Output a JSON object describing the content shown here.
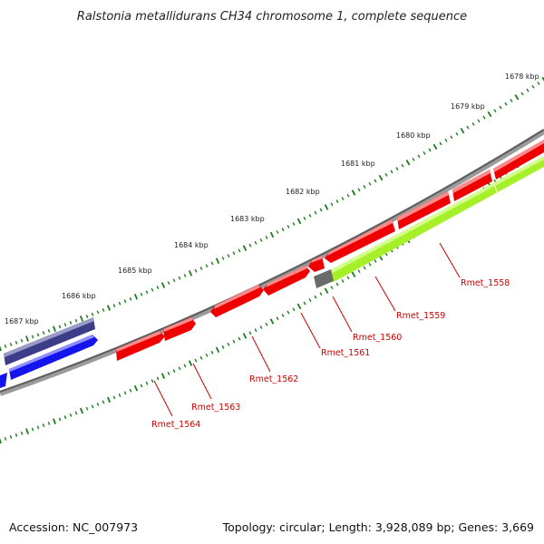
{
  "title": "Ralstonia metallidurans CH34 chromosome 1, complete sequence",
  "footer": {
    "accession": "Accession: NC_007973",
    "summary": "Topology: circular; Length: 3,928,089 bp; Genes: 3,669"
  },
  "scale_labels": [
    "1678 kbp",
    "1679 kbp",
    "1680 kbp",
    "1681 kbp",
    "1682 kbp",
    "1683 kbp",
    "1684 kbp",
    "1685 kbp",
    "1686 kbp",
    "1687 kbp"
  ],
  "gene_labels": [
    "Rmet_1558",
    "Rmet_1559",
    "Rmet_1560",
    "Rmet_1561",
    "Rmet_1562",
    "Rmet_1563",
    "Rmet_1564"
  ],
  "colors": {
    "backbone": "#777777",
    "tick": "#1e7a1e",
    "gene_red": "#ee0000",
    "gene_red_top": "#ff8a8a",
    "gene_red_edge": "#b30000",
    "gene_blue": "#1414ee",
    "gene_blue_top": "#8f8fff",
    "gene_navy": "#3c3c88",
    "gene_navy_top": "#9a9ac8",
    "gene_lime": "#a6f02a",
    "gene_lime_top": "#d4ff8a",
    "gene_grey": "#6a6a6a",
    "label_red": "#cc0000"
  }
}
